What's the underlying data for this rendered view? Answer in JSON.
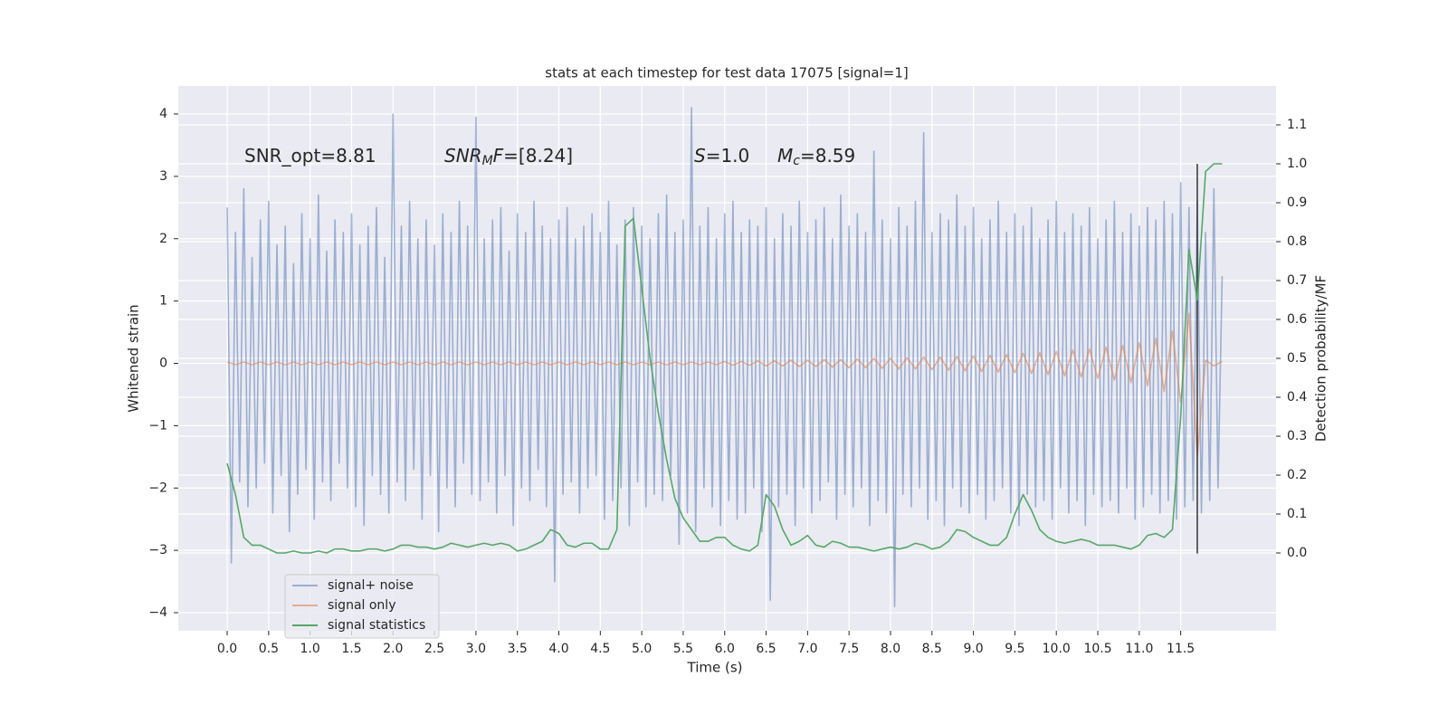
{
  "chart_data": {
    "type": "line",
    "title": "stats at each timestep for test data 17075 [signal=1]",
    "x_label": "Time (s)",
    "y_label": "Whitened strain",
    "y2_label": "Detection probability/MF",
    "background": "#eaeaf2",
    "grid": true,
    "legend": "lower left",
    "xlim": [
      -0.59,
      12.65
    ],
    "ylim": [
      -4.29,
      4.45
    ],
    "y2lim": [
      -0.2,
      1.2
    ],
    "xticks": [
      {
        "value": 0,
        "label": "0.0"
      },
      0.5,
      {
        "value": 1,
        "label": "1.0"
      },
      1.5,
      {
        "value": 2,
        "label": "2.0"
      },
      2.5,
      {
        "value": 3,
        "label": "3.0"
      },
      3.5,
      {
        "value": 4,
        "label": "4.0"
      },
      4.5,
      {
        "value": 5,
        "label": "5.0"
      },
      5.5,
      {
        "value": 6,
        "label": "6.0"
      },
      6.5,
      {
        "value": 7,
        "label": "7.0"
      },
      7.5,
      {
        "value": 8,
        "label": "8.0"
      },
      8.5,
      {
        "value": 9,
        "label": "9.0"
      },
      9.5,
      {
        "value": 10,
        "label": "10.0"
      },
      10.5,
      {
        "value": 11,
        "label": "11.0"
      },
      11.5
    ],
    "yticks": [
      {
        "value": -4,
        "label": "−4"
      },
      {
        "value": -3,
        "label": "−3"
      },
      {
        "value": -2,
        "label": "−2"
      },
      {
        "value": -1,
        "label": "−1"
      },
      0,
      1,
      2,
      3,
      4
    ],
    "y2ticks": [
      {
        "value": 0,
        "label": "0.0"
      },
      0.1,
      0.2,
      0.3,
      0.4,
      0.5,
      0.6,
      0.7,
      0.8,
      0.9,
      {
        "value": 1,
        "label": "1.0"
      },
      1.1
    ],
    "annotations": [
      [
        {
          "text": "SNR_opt=8.81",
          "style": "normal"
        }
      ],
      [
        {
          "text": "SNR",
          "style": "italic"
        },
        {
          "text": "M",
          "style": "sub"
        },
        {
          "text": "F",
          "style": "italic"
        },
        {
          "text": "=[8.24]",
          "style": "normal"
        }
      ],
      [
        {
          "text": "S",
          "style": "italic"
        },
        {
          "text": "=1.0",
          "style": "normal"
        }
      ],
      [
        {
          "text": "M",
          "style": "italic"
        },
        {
          "text": "c",
          "style": "sub"
        },
        {
          "text": "=8.59",
          "style": "normal"
        }
      ]
    ],
    "vline": {
      "x": 11.7,
      "y": [
        -3.05,
        3.2
      ],
      "color": "#333333"
    },
    "series": [
      {
        "name": "signal+ noise",
        "color": "#4c72b0",
        "opacity": 0.5,
        "axis": "y",
        "x": [
          0,
          0.05,
          0.1,
          0.15,
          0.2,
          0.25,
          0.3,
          0.35,
          0.4,
          0.45,
          0.5,
          0.55,
          0.6,
          0.65,
          0.7,
          0.75,
          0.8,
          0.85,
          0.9,
          0.95,
          1,
          1.05,
          1.1,
          1.15,
          1.2,
          1.25,
          1.3,
          1.35,
          1.4,
          1.45,
          1.5,
          1.55,
          1.6,
          1.65,
          1.7,
          1.75,
          1.8,
          1.85,
          1.9,
          1.95,
          2,
          2.05,
          2.1,
          2.15,
          2.2,
          2.25,
          2.3,
          2.35,
          2.4,
          2.45,
          2.5,
          2.55,
          2.6,
          2.65,
          2.7,
          2.75,
          2.8,
          2.85,
          2.9,
          2.95,
          3,
          3.05,
          3.1,
          3.15,
          3.2,
          3.25,
          3.3,
          3.35,
          3.4,
          3.45,
          3.5,
          3.55,
          3.6,
          3.65,
          3.7,
          3.75,
          3.8,
          3.85,
          3.9,
          3.95,
          4,
          4.05,
          4.1,
          4.15,
          4.2,
          4.25,
          4.3,
          4.35,
          4.4,
          4.45,
          4.5,
          4.55,
          4.6,
          4.65,
          4.7,
          4.75,
          4.8,
          4.85,
          4.9,
          4.95,
          5,
          5.05,
          5.1,
          5.15,
          5.2,
          5.25,
          5.3,
          5.35,
          5.4,
          5.45,
          5.5,
          5.55,
          5.6,
          5.65,
          5.7,
          5.75,
          5.8,
          5.85,
          5.9,
          5.95,
          6,
          6.05,
          6.1,
          6.15,
          6.2,
          6.25,
          6.3,
          6.35,
          6.4,
          6.45,
          6.5,
          6.55,
          6.6,
          6.65,
          6.7,
          6.75,
          6.8,
          6.85,
          6.9,
          6.95,
          7,
          7.05,
          7.1,
          7.15,
          7.2,
          7.25,
          7.3,
          7.35,
          7.4,
          7.45,
          7.5,
          7.55,
          7.6,
          7.65,
          7.7,
          7.75,
          7.8,
          7.85,
          7.9,
          7.95,
          8,
          8.05,
          8.1,
          8.15,
          8.2,
          8.25,
          8.3,
          8.35,
          8.4,
          8.45,
          8.5,
          8.55,
          8.6,
          8.65,
          8.7,
          8.75,
          8.8,
          8.85,
          8.9,
          8.95,
          9,
          9.05,
          9.1,
          9.15,
          9.2,
          9.25,
          9.3,
          9.35,
          9.4,
          9.45,
          9.5,
          9.55,
          9.6,
          9.65,
          9.7,
          9.75,
          9.8,
          9.85,
          9.9,
          9.95,
          10,
          10.05,
          10.1,
          10.15,
          10.2,
          10.25,
          10.3,
          10.35,
          10.4,
          10.45,
          10.5,
          10.55,
          10.6,
          10.65,
          10.7,
          10.75,
          10.8,
          10.85,
          10.9,
          10.95,
          11,
          11.05,
          11.1,
          11.15,
          11.2,
          11.25,
          11.3,
          11.35,
          11.4,
          11.45,
          11.5,
          11.55,
          11.6,
          11.65,
          11.7,
          11.75,
          11.8,
          11.85,
          11.9,
          11.95,
          12
        ],
        "values": [
          2.5,
          -3.2,
          2.1,
          -1.9,
          2.8,
          -2.3,
          1.7,
          -2.0,
          2.3,
          -1.6,
          2.6,
          -2.4,
          1.9,
          -1.8,
          2.2,
          -2.7,
          1.6,
          -2.1,
          2.4,
          -1.7,
          2.0,
          -2.5,
          2.7,
          -1.9,
          1.8,
          -2.2,
          2.3,
          -1.6,
          2.1,
          -2.0,
          2.4,
          -2.3,
          1.9,
          -2.6,
          2.2,
          -1.8,
          2.5,
          -2.1,
          1.7,
          -2.4,
          4.0,
          -1.9,
          2.2,
          -2.2,
          2.6,
          -1.7,
          2.0,
          -2.5,
          2.3,
          -1.8,
          1.9,
          -2.7,
          2.4,
          -2.0,
          2.1,
          -2.3,
          2.6,
          -1.6,
          2.2,
          -2.1,
          3.95,
          -2.2,
          2.0,
          -1.9,
          2.3,
          -2.4,
          2.5,
          -1.8,
          1.8,
          -2.6,
          2.4,
          -2.0,
          2.1,
          -2.2,
          2.6,
          -1.7,
          2.2,
          -2.3,
          2.0,
          -3.5,
          2.3,
          -2.1,
          2.5,
          -1.9,
          2.0,
          -2.4,
          2.2,
          -2.0,
          2.4,
          -1.8,
          2.1,
          -2.5,
          2.6,
          -2.2,
          1.9,
          -2.0,
          2.3,
          -2.6,
          2.5,
          -1.9,
          2.2,
          -2.3,
          2.0,
          -2.1,
          2.4,
          -2.2,
          2.7,
          -1.8,
          2.1,
          -2.9,
          2.3,
          -2.4,
          4.1,
          -2.7,
          2.2,
          -2.0,
          2.5,
          -2.3,
          2.0,
          -2.6,
          2.4,
          -2.2,
          2.6,
          -2.5,
          2.1,
          -2.4,
          2.3,
          -2.0,
          2.2,
          -2.7,
          2.5,
          -3.8,
          2.0,
          -2.3,
          2.4,
          -2.1,
          2.2,
          -2.6,
          2.6,
          -2.0,
          2.1,
          -2.4,
          2.3,
          -2.2,
          2.5,
          -1.9,
          2.0,
          -2.5,
          2.7,
          -2.1,
          2.2,
          -2.3,
          2.4,
          -2.0,
          2.1,
          -2.6,
          3.4,
          -2.2,
          2.3,
          -2.4,
          2.0,
          -3.9,
          2.5,
          -2.1,
          2.2,
          -2.3,
          2.6,
          -2.0,
          3.7,
          -2.5,
          2.1,
          -2.2,
          2.4,
          -2.6,
          2.3,
          -2.0,
          2.7,
          -2.3,
          2.2,
          -2.4,
          2.5,
          -2.1,
          2.0,
          -2.5,
          2.3,
          -2.2,
          2.6,
          -2.0,
          2.1,
          -2.4,
          2.4,
          -2.6,
          2.2,
          -2.1,
          2.5,
          -2.3,
          2.0,
          -2.2,
          2.3,
          -2.5,
          2.6,
          -2.0,
          2.1,
          -2.4,
          2.4,
          -2.2,
          2.2,
          -2.6,
          2.5,
          -2.1,
          2.0,
          -2.3,
          2.3,
          -2.2,
          2.6,
          -2.4,
          2.1,
          -2.0,
          2.4,
          -2.5,
          2.2,
          -2.3,
          2.5,
          -2.1,
          2.3,
          -2.4,
          2.6,
          -2.2,
          2.4,
          -2.5,
          2.9,
          -2.3,
          2.5,
          -2.2,
          2.6,
          -2.4,
          2.1,
          -2.2,
          2.8,
          -2.0,
          1.4
        ]
      },
      {
        "name": "signal only",
        "color": "#dd8452",
        "opacity": 0.6,
        "axis": "y",
        "x": [
          0,
          0.1,
          0.2,
          0.3,
          0.4,
          0.5,
          0.6,
          0.7,
          0.8,
          0.9,
          1,
          1.1,
          1.2,
          1.3,
          1.4,
          1.5,
          1.6,
          1.7,
          1.8,
          1.9,
          2,
          2.1,
          2.2,
          2.3,
          2.4,
          2.5,
          2.6,
          2.7,
          2.8,
          2.9,
          3,
          3.1,
          3.2,
          3.3,
          3.4,
          3.5,
          3.6,
          3.7,
          3.8,
          3.9,
          4,
          4.1,
          4.2,
          4.3,
          4.4,
          4.5,
          4.6,
          4.7,
          4.8,
          4.9,
          5,
          5.1,
          5.2,
          5.3,
          5.4,
          5.5,
          5.6,
          5.7,
          5.8,
          5.9,
          6,
          6.1,
          6.2,
          6.3,
          6.4,
          6.5,
          6.6,
          6.7,
          6.8,
          6.9,
          7,
          7.1,
          7.2,
          7.3,
          7.4,
          7.5,
          7.6,
          7.7,
          7.8,
          7.9,
          8,
          8.1,
          8.2,
          8.3,
          8.4,
          8.5,
          8.6,
          8.7,
          8.8,
          8.9,
          9,
          9.1,
          9.2,
          9.3,
          9.4,
          9.5,
          9.6,
          9.7,
          9.8,
          9.9,
          10,
          10.1,
          10.2,
          10.3,
          10.4,
          10.5,
          10.6,
          10.7,
          10.8,
          10.9,
          11,
          11.1,
          11.2,
          11.3,
          11.4,
          11.5,
          11.6,
          11.7,
          11.8,
          11.9,
          12
        ],
        "values": [
          0.02,
          -0.02,
          0.02,
          -0.02,
          0.02,
          -0.02,
          0.02,
          -0.02,
          0.02,
          -0.02,
          0.02,
          -0.02,
          0.02,
          -0.02,
          0.02,
          -0.02,
          0.02,
          -0.02,
          0.02,
          -0.02,
          0.02,
          -0.02,
          0.02,
          -0.02,
          0.02,
          -0.02,
          0.02,
          -0.02,
          0.02,
          -0.02,
          0.02,
          -0.02,
          0.02,
          -0.02,
          0.02,
          -0.02,
          0.02,
          -0.02,
          0.02,
          -0.02,
          0.02,
          -0.02,
          0.02,
          -0.02,
          0.02,
          -0.02,
          0.02,
          -0.02,
          0.02,
          -0.02,
          0.02,
          -0.02,
          0.02,
          -0.02,
          0.02,
          -0.02,
          0.02,
          -0.02,
          0.02,
          -0.02,
          0.03,
          -0.03,
          0.03,
          -0.03,
          0.04,
          -0.04,
          0.04,
          -0.04,
          0.05,
          -0.05,
          0.05,
          -0.05,
          0.06,
          -0.06,
          0.06,
          -0.07,
          0.07,
          -0.07,
          0.08,
          -0.08,
          0.08,
          -0.09,
          0.09,
          -0.09,
          0.1,
          -0.1,
          0.1,
          -0.11,
          0.11,
          -0.12,
          0.12,
          -0.13,
          0.13,
          -0.14,
          0.14,
          -0.15,
          0.16,
          -0.16,
          0.17,
          -0.18,
          0.19,
          -0.2,
          0.21,
          -0.22,
          0.23,
          -0.24,
          0.26,
          -0.27,
          0.29,
          -0.31,
          0.33,
          -0.36,
          0.4,
          -0.45,
          0.52,
          -0.62,
          0.8,
          -1.5,
          0.05,
          -0.04,
          0.03
        ]
      },
      {
        "name": "signal statistics",
        "color": "#55a868",
        "opacity": 1,
        "axis": "y2",
        "x": [
          0,
          0.1,
          0.2,
          0.3,
          0.4,
          0.5,
          0.6,
          0.7,
          0.8,
          0.9,
          1,
          1.1,
          1.2,
          1.3,
          1.4,
          1.5,
          1.6,
          1.7,
          1.8,
          1.9,
          2,
          2.1,
          2.2,
          2.3,
          2.4,
          2.5,
          2.6,
          2.7,
          2.8,
          2.9,
          3,
          3.1,
          3.2,
          3.3,
          3.4,
          3.5,
          3.6,
          3.7,
          3.8,
          3.9,
          4,
          4.1,
          4.2,
          4.3,
          4.4,
          4.5,
          4.6,
          4.7,
          4.8,
          4.9,
          5,
          5.1,
          5.2,
          5.3,
          5.4,
          5.5,
          5.6,
          5.7,
          5.8,
          5.9,
          6,
          6.1,
          6.2,
          6.3,
          6.4,
          6.5,
          6.6,
          6.7,
          6.8,
          6.9,
          7,
          7.1,
          7.2,
          7.3,
          7.4,
          7.5,
          7.6,
          7.7,
          7.8,
          7.9,
          8,
          8.1,
          8.2,
          8.3,
          8.4,
          8.5,
          8.6,
          8.7,
          8.8,
          8.9,
          9,
          9.1,
          9.2,
          9.3,
          9.4,
          9.5,
          9.6,
          9.7,
          9.8,
          9.9,
          10,
          10.1,
          10.2,
          10.3,
          10.4,
          10.5,
          10.6,
          10.7,
          10.8,
          10.9,
          11,
          11.1,
          11.2,
          11.3,
          11.4,
          11.5,
          11.6,
          11.7,
          11.8,
          11.9,
          12
        ],
        "values": [
          0.23,
          0.15,
          0.04,
          0.02,
          0.02,
          0.01,
          0.0,
          0.0,
          0.005,
          0.0,
          0.0,
          0.005,
          0.0,
          0.01,
          0.01,
          0.005,
          0.005,
          0.01,
          0.01,
          0.005,
          0.01,
          0.02,
          0.02,
          0.015,
          0.015,
          0.01,
          0.015,
          0.025,
          0.02,
          0.015,
          0.02,
          0.025,
          0.02,
          0.025,
          0.02,
          0.005,
          0.01,
          0.02,
          0.03,
          0.06,
          0.05,
          0.02,
          0.015,
          0.025,
          0.025,
          0.01,
          0.01,
          0.06,
          0.84,
          0.86,
          0.68,
          0.5,
          0.36,
          0.24,
          0.14,
          0.09,
          0.06,
          0.03,
          0.03,
          0.04,
          0.04,
          0.02,
          0.01,
          0.005,
          0.02,
          0.15,
          0.12,
          0.06,
          0.02,
          0.03,
          0.045,
          0.02,
          0.015,
          0.03,
          0.025,
          0.015,
          0.015,
          0.01,
          0.005,
          0.01,
          0.015,
          0.01,
          0.015,
          0.025,
          0.02,
          0.01,
          0.015,
          0.03,
          0.06,
          0.055,
          0.04,
          0.03,
          0.02,
          0.02,
          0.04,
          0.1,
          0.15,
          0.11,
          0.06,
          0.04,
          0.03,
          0.025,
          0.03,
          0.035,
          0.03,
          0.02,
          0.02,
          0.02,
          0.015,
          0.01,
          0.02,
          0.045,
          0.05,
          0.04,
          0.06,
          0.35,
          0.78,
          0.65,
          0.98,
          1.0,
          1.0
        ]
      }
    ]
  }
}
